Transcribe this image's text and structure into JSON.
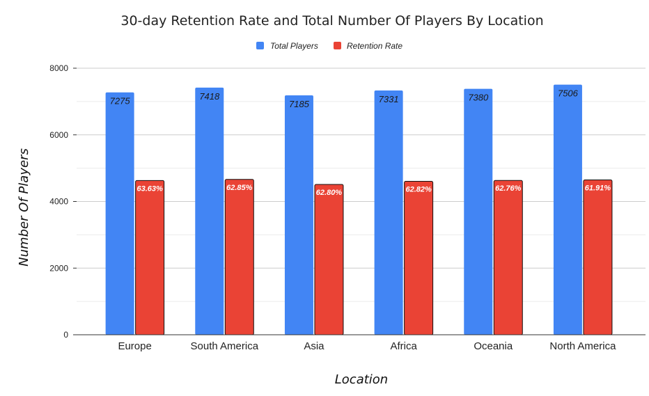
{
  "chart_data": {
    "type": "bar",
    "title": "30-day Retention Rate and Total Number Of Players By Location",
    "xlabel": "Location",
    "ylabel": "Number Of Players",
    "categories": [
      "Europe",
      "South America",
      "Asia",
      "Africa",
      "Oceania",
      "North America"
    ],
    "ylim": [
      0,
      8000
    ],
    "yticks": [
      0,
      2000,
      4000,
      6000,
      8000
    ],
    "grid": true,
    "legend_position": "top",
    "series": [
      {
        "name": "Total Players",
        "color": "#4285f4",
        "values": [
          7275,
          7418,
          7185,
          7331,
          7380,
          7506
        ],
        "labels": [
          "7275",
          "7418",
          "7185",
          "7331",
          "7380",
          "7506"
        ]
      },
      {
        "name": "Retention Rate",
        "color": "#ea4335",
        "values": [
          4629,
          4662,
          4512,
          4605,
          4632,
          4647
        ],
        "labels": [
          "63.63%",
          "62.85%",
          "62.80%",
          "62.82%",
          "62.76%",
          "61.91%"
        ]
      }
    ]
  }
}
